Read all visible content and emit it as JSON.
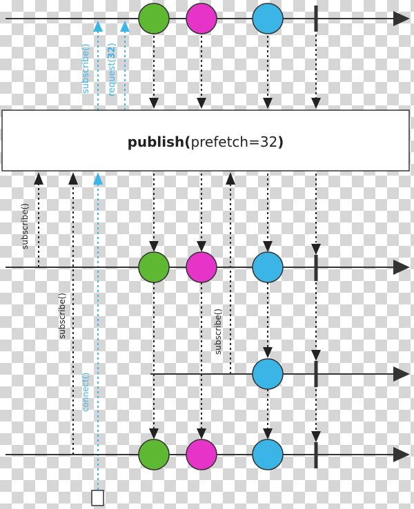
{
  "operator": {
    "name": "publish",
    "open_paren": "(",
    "args": "prefetch=32",
    "close_paren": ")"
  },
  "labels": {
    "upstream_subscribe": "subscribe()",
    "request_prefix": "request(",
    "request_value": "32",
    "request_suffix": ")",
    "subscriber1_subscribe": "subscribe()",
    "subscriber3_subscribe": "subscribe()",
    "connect": "connect()",
    "subscriber2_subscribe": "subscribe()"
  },
  "colors": {
    "green": "#5fb832",
    "magenta": "#e633c8",
    "blue": "#3bb5e6",
    "request_cyan": "#3bb5e6",
    "line": "#333333"
  },
  "marbles": [
    "green",
    "magenta",
    "blue"
  ]
}
